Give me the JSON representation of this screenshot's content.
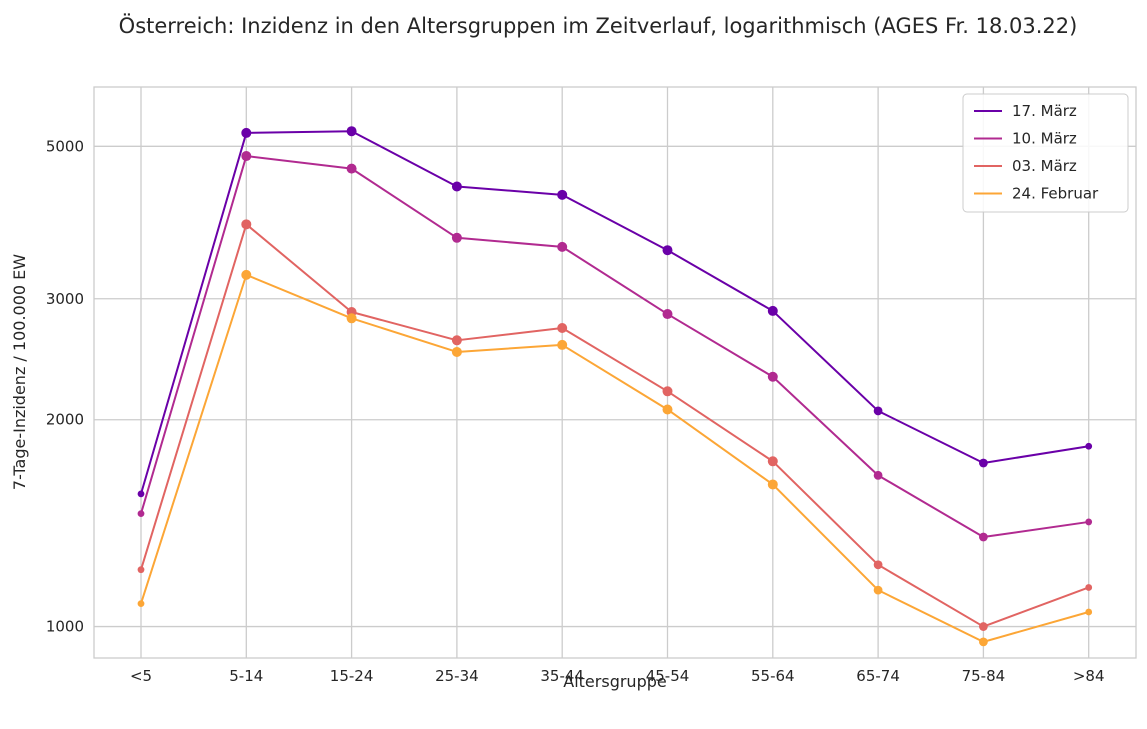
{
  "chart_data": {
    "type": "line",
    "title": "Österreich: Inzidenz in den Altersgruppen im Zeitverlauf, logarithmisch (AGES Fr. 18.03.22)",
    "xlabel": "Altersgruppe",
    "ylabel": "7-Tage-Inzidenz / 100.000 EW",
    "y_scale": "log",
    "ylim": [
      900,
      6100
    ],
    "yticks": [
      1000,
      2000,
      3000,
      5000
    ],
    "grid": true,
    "legend_position": "top-right",
    "categories": [
      "<5",
      "5-14",
      "15-24",
      "25-34",
      "35-44",
      "45-54",
      "55-64",
      "65-74",
      "75-84",
      ">84"
    ],
    "series": [
      {
        "name": "17. März",
        "color": "#6a00a8",
        "values": [
          1560,
          5230,
          5260,
          4370,
          4250,
          3530,
          2880,
          2060,
          1730,
          1830
        ]
      },
      {
        "name": "10. März",
        "color": "#b12a90",
        "values": [
          1460,
          4840,
          4640,
          3680,
          3570,
          2850,
          2310,
          1660,
          1350,
          1420
        ]
      },
      {
        "name": "03. März",
        "color": "#e16462",
        "values": [
          1210,
          3850,
          2870,
          2610,
          2720,
          2200,
          1740,
          1230,
          1000,
          1140
        ]
      },
      {
        "name": "24. Februar",
        "color": "#fca636",
        "values": [
          1080,
          3250,
          2810,
          2510,
          2570,
          2070,
          1610,
          1130,
          950,
          1050
        ]
      }
    ]
  }
}
